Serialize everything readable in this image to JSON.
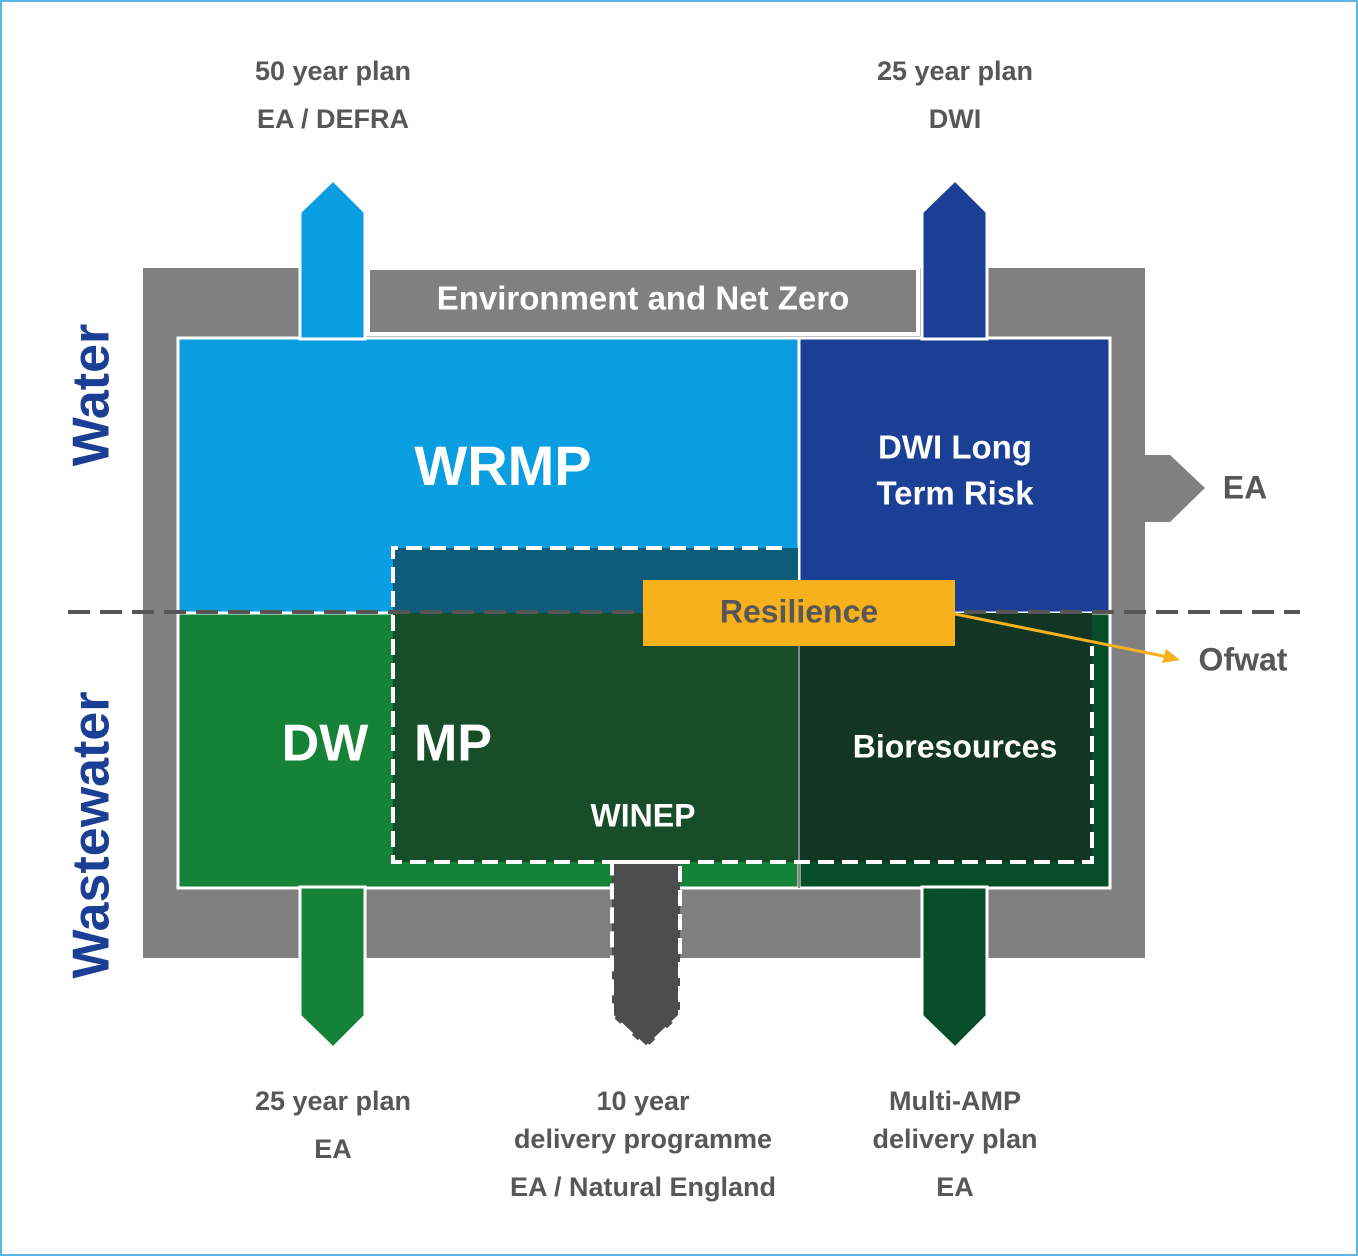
{
  "top_left": {
    "lines": [
      "50 year plan",
      "EA / DEFRA"
    ]
  },
  "top_right": {
    "lines": [
      "25 year plan",
      "DWI"
    ]
  },
  "frame_label": "Environment and Net Zero",
  "side_labels": {
    "water": "Water",
    "wastewater": "Wastewater"
  },
  "boxes": {
    "wrmp": "WRMP",
    "dwi": {
      "lines": [
        "DWI Long",
        "Term Risk"
      ]
    },
    "dwmp": [
      "DW",
      "MP"
    ],
    "bioresources": "Bioresources",
    "winep": "WINEP",
    "resilience": "Resilience"
  },
  "right_labels": {
    "ea": "EA",
    "ofwat": "Ofwat"
  },
  "bottom_left": {
    "lines": [
      "25 year plan",
      "EA"
    ]
  },
  "bottom_middle": {
    "lines": [
      "10 year",
      "delivery programme",
      "EA / Natural England"
    ]
  },
  "bottom_right": {
    "lines": [
      "Multi-AMP",
      "delivery plan",
      "EA"
    ]
  }
}
